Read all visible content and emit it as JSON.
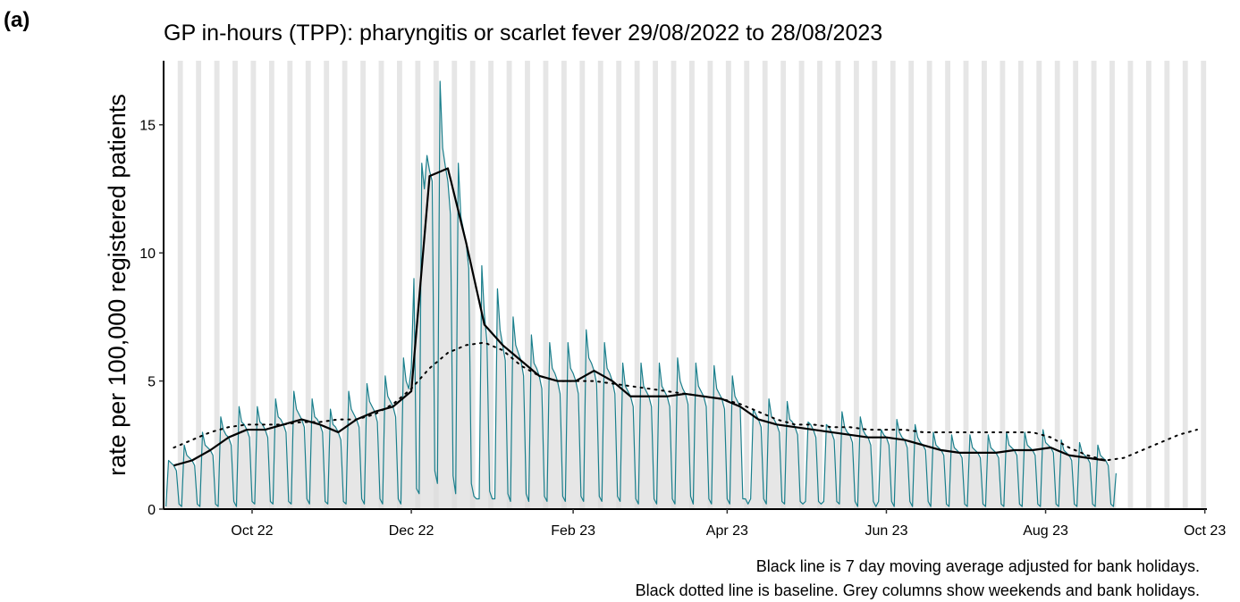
{
  "panel_label": "(a)",
  "chart_data": {
    "type": "line",
    "title": "GP in-hours (TPP): pharyngitis or scarlet fever 29/08/2022 to 28/08/2023",
    "y_label": "rate per 100,000 registered patients",
    "notes": [
      "Black line is 7 day moving average adjusted for bank holidays.",
      "Black dotted line is baseline. Grey columns show weekends and bank holidays."
    ],
    "xlim": [
      -0.9,
      398.8
    ],
    "xticks": [
      {
        "value": 33,
        "label": "Oct 22"
      },
      {
        "value": 94,
        "label": "Dec 22"
      },
      {
        "value": 156,
        "label": "Feb 23"
      },
      {
        "value": 215,
        "label": "Apr 23"
      },
      {
        "value": 276,
        "label": "Jun 23"
      },
      {
        "value": 337,
        "label": "Aug 23"
      },
      {
        "value": 398,
        "label": "Oct 23"
      }
    ],
    "ylim": [
      0,
      17.5
    ],
    "yticks": [
      0,
      5,
      10,
      15
    ],
    "weekend_columns": true,
    "series": [
      {
        "color": "#1a7f8c",
        "fill": "#dcdcdc",
        "width": 1.2,
        "dash": "solid",
        "x": [
          0,
          1,
          2,
          3,
          4,
          5,
          6,
          7,
          8,
          9,
          10,
          11,
          12,
          13,
          14,
          15,
          16,
          17,
          18,
          19,
          20,
          21,
          22,
          23,
          24,
          25,
          26,
          27,
          28,
          29,
          30,
          31,
          32,
          33,
          34,
          35,
          36,
          37,
          38,
          39,
          40,
          41,
          42,
          43,
          44,
          45,
          46,
          47,
          48,
          49,
          50,
          51,
          52,
          53,
          54,
          55,
          56,
          57,
          58,
          59,
          60,
          61,
          62,
          63,
          64,
          65,
          66,
          67,
          68,
          69,
          70,
          71,
          72,
          73,
          74,
          75,
          76,
          77,
          78,
          79,
          80,
          81,
          82,
          83,
          84,
          85,
          86,
          87,
          88,
          89,
          90,
          91,
          92,
          93,
          94,
          95,
          96,
          97,
          98,
          99,
          100,
          101,
          102,
          103,
          104,
          105,
          106,
          107,
          108,
          109,
          110,
          111,
          112,
          113,
          114,
          115,
          116,
          117,
          118,
          119,
          120,
          121,
          122,
          123,
          124,
          125,
          126,
          127,
          128,
          129,
          130,
          131,
          132,
          133,
          134,
          135,
          136,
          137,
          138,
          139,
          140,
          141,
          142,
          143,
          144,
          145,
          146,
          147,
          148,
          149,
          150,
          151,
          152,
          153,
          154,
          155,
          156,
          157,
          158,
          159,
          160,
          161,
          162,
          163,
          164,
          165,
          166,
          167,
          168,
          169,
          170,
          171,
          172,
          173,
          174,
          175,
          176,
          177,
          178,
          179,
          180,
          181,
          182,
          183,
          184,
          185,
          186,
          187,
          188,
          189,
          190,
          191,
          192,
          193,
          194,
          195,
          196,
          197,
          198,
          199,
          200,
          201,
          202,
          203,
          204,
          205,
          206,
          207,
          208,
          209,
          210,
          211,
          212,
          213,
          214,
          215,
          216,
          217,
          218,
          219,
          220,
          221,
          222,
          223,
          224,
          225,
          226,
          227,
          228,
          229,
          230,
          231,
          232,
          233,
          234,
          235,
          236,
          237,
          238,
          239,
          240,
          241,
          242,
          243,
          244,
          245,
          246,
          247,
          248,
          249,
          250,
          251,
          252,
          253,
          254,
          255,
          256,
          257,
          258,
          259,
          260,
          261,
          262,
          263,
          264,
          265,
          266,
          267,
          268,
          269,
          270,
          271,
          272,
          273,
          274,
          275,
          276,
          277,
          278,
          279,
          280,
          281,
          282,
          283,
          284,
          285,
          286,
          287,
          288,
          289,
          290,
          291,
          292,
          293,
          294,
          295,
          296,
          297,
          298,
          299,
          300,
          301,
          302,
          303,
          304,
          305,
          306,
          307,
          308,
          309,
          310,
          311,
          312,
          313,
          314,
          315,
          316,
          317,
          318,
          319,
          320,
          321,
          322,
          323,
          324,
          325,
          326,
          327,
          328,
          329,
          330,
          331,
          332,
          333,
          334,
          335,
          336,
          337,
          338,
          339,
          340,
          341,
          342,
          343,
          344,
          345,
          346,
          347,
          348,
          349,
          350,
          351,
          352,
          353,
          354,
          355,
          356,
          357,
          358,
          359,
          360,
          361,
          362,
          363,
          364
        ],
        "values": [
          0.1,
          1.9,
          1.8,
          1.7,
          1.5,
          0.2,
          0.1,
          2.5,
          2.1,
          2.0,
          1.9,
          1.7,
          0.2,
          0.1,
          3.0,
          2.5,
          2.4,
          2.3,
          2.1,
          0.2,
          0.1,
          3.6,
          3.1,
          2.9,
          2.8,
          2.5,
          0.3,
          0.1,
          4.0,
          3.4,
          3.3,
          3.1,
          2.8,
          0.3,
          0.2,
          4.0,
          3.4,
          3.3,
          3.1,
          2.8,
          0.3,
          0.2,
          4.3,
          3.6,
          3.5,
          3.3,
          3.0,
          0.3,
          0.2,
          4.6,
          3.9,
          3.7,
          3.5,
          3.2,
          0.4,
          0.2,
          4.3,
          3.6,
          3.5,
          3.3,
          3.0,
          0.3,
          0.2,
          3.9,
          3.3,
          3.2,
          3.0,
          2.7,
          0.3,
          0.2,
          4.6,
          3.9,
          3.7,
          3.5,
          3.2,
          0.4,
          0.2,
          4.9,
          4.2,
          4.0,
          3.8,
          3.4,
          0.4,
          0.2,
          5.2,
          4.4,
          4.2,
          4.0,
          3.6,
          0.4,
          0.2,
          5.9,
          5.0,
          4.7,
          5.5,
          9.0,
          0.8,
          0.6,
          13.5,
          12.5,
          13.8,
          13.2,
          12.8,
          1.5,
          1.0,
          16.7,
          14.1,
          13.4,
          12.8,
          11.5,
          1.3,
          0.6,
          13.5,
          11.4,
          10.9,
          10.4,
          9.4,
          1.0,
          0.5,
          0.4,
          0.4,
          9.5,
          7.6,
          6.5,
          0.7,
          0.4,
          0.4,
          8.6,
          7.0,
          6.4,
          5.8,
          0.6,
          0.3,
          7.5,
          6.4,
          6.1,
          5.8,
          5.2,
          0.6,
          0.3,
          6.8,
          5.7,
          5.5,
          5.2,
          4.7,
          0.5,
          0.3,
          6.5,
          5.5,
          5.3,
          5.0,
          4.5,
          0.5,
          0.3,
          6.5,
          5.5,
          5.3,
          5.0,
          4.5,
          0.5,
          0.3,
          7.0,
          5.9,
          5.7,
          5.4,
          4.9,
          0.5,
          0.3,
          6.5,
          5.5,
          5.3,
          5.0,
          4.5,
          0.5,
          0.3,
          5.7,
          4.8,
          4.6,
          4.4,
          4.0,
          0.4,
          0.2,
          5.7,
          4.8,
          4.6,
          4.4,
          4.0,
          0.4,
          0.2,
          5.7,
          4.8,
          4.6,
          4.4,
          4.0,
          0.4,
          0.2,
          5.9,
          5.0,
          4.7,
          4.5,
          4.1,
          0.5,
          0.2,
          5.7,
          4.8,
          4.6,
          4.4,
          4.0,
          0.4,
          0.2,
          5.6,
          4.7,
          4.5,
          4.3,
          3.9,
          0.4,
          0.2,
          5.2,
          4.4,
          4.2,
          4.0,
          0.4,
          0.4,
          0.2,
          0.4,
          3.9,
          3.7,
          3.5,
          3.2,
          0.4,
          0.2,
          4.3,
          3.6,
          3.5,
          3.3,
          3.0,
          0.3,
          0.2,
          4.2,
          3.5,
          3.4,
          3.2,
          2.9,
          0.3,
          0.2,
          0.3,
          3.4,
          3.3,
          3.1,
          2.8,
          0.3,
          0.2,
          0.3,
          3.3,
          3.2,
          3.0,
          2.7,
          0.3,
          0.2,
          3.8,
          3.2,
          3.0,
          2.9,
          2.6,
          0.3,
          0.1,
          3.6,
          3.1,
          2.9,
          2.8,
          2.5,
          0.3,
          0.1,
          0.3,
          3.1,
          2.9,
          2.8,
          2.5,
          0.3,
          0.1,
          3.5,
          3.0,
          2.8,
          2.7,
          2.4,
          0.3,
          0.1,
          3.3,
          2.8,
          2.6,
          2.5,
          2.3,
          0.3,
          0.1,
          3.0,
          2.5,
          2.4,
          2.3,
          2.1,
          0.2,
          0.1,
          2.9,
          2.4,
          2.3,
          2.2,
          2.0,
          0.2,
          0.1,
          2.9,
          2.4,
          2.3,
          2.2,
          2.0,
          0.2,
          0.1,
          2.9,
          2.4,
          2.3,
          2.2,
          2.0,
          0.2,
          0.1,
          3.0,
          2.5,
          2.4,
          2.3,
          2.1,
          0.2,
          0.1,
          3.0,
          2.5,
          2.4,
          2.3,
          2.1,
          0.2,
          0.1,
          3.1,
          2.6,
          2.5,
          2.4,
          2.2,
          0.2,
          0.1,
          2.7,
          2.3,
          2.2,
          2.1,
          1.9,
          0.2,
          0.1,
          2.6,
          2.2,
          2.1,
          2.0,
          1.8,
          0.2,
          0.1,
          2.5,
          2.1,
          2.0,
          1.9,
          1.7,
          0.2,
          0.1,
          1.4
        ]
      },
      {
        "color": "#000000",
        "width": 2.2,
        "dash": "solid",
        "x": [
          3,
          10,
          17,
          24,
          31,
          38,
          45,
          52,
          59,
          66,
          73,
          80,
          87,
          94,
          101,
          108,
          115,
          122,
          129,
          136,
          143,
          150,
          157,
          164,
          171,
          178,
          185,
          192,
          199,
          206,
          213,
          220,
          227,
          234,
          241,
          248,
          255,
          262,
          269,
          276,
          283,
          290,
          297,
          304,
          311,
          318,
          325,
          332,
          339,
          346,
          353,
          360
        ],
        "values": [
          1.7,
          1.9,
          2.3,
          2.8,
          3.1,
          3.1,
          3.3,
          3.5,
          3.3,
          3.0,
          3.5,
          3.8,
          4.0,
          4.6,
          13.0,
          13.3,
          10.4,
          7.2,
          6.4,
          5.8,
          5.2,
          5.0,
          5.0,
          5.4,
          5.0,
          4.4,
          4.4,
          4.4,
          4.5,
          4.4,
          4.3,
          4.0,
          3.5,
          3.3,
          3.2,
          3.1,
          3.0,
          2.9,
          2.8,
          2.8,
          2.7,
          2.5,
          2.3,
          2.2,
          2.2,
          2.2,
          2.3,
          2.3,
          2.4,
          2.1,
          2.0,
          1.9
        ]
      },
      {
        "color": "#000000",
        "width": 2,
        "dash": "dotted",
        "x": [
          3,
          10,
          17,
          24,
          31,
          38,
          45,
          52,
          59,
          66,
          73,
          80,
          87,
          94,
          101,
          108,
          115,
          122,
          129,
          136,
          143,
          150,
          157,
          164,
          171,
          178,
          185,
          192,
          199,
          206,
          213,
          220,
          227,
          234,
          241,
          248,
          255,
          262,
          269,
          276,
          283,
          290,
          297,
          304,
          311,
          318,
          325,
          332,
          339,
          346,
          353,
          360,
          367,
          374,
          381,
          388,
          395
        ],
        "values": [
          2.4,
          2.7,
          3.0,
          3.2,
          3.3,
          3.3,
          3.3,
          3.4,
          3.4,
          3.5,
          3.5,
          3.7,
          4.1,
          4.7,
          5.5,
          6.1,
          6.4,
          6.5,
          6.2,
          5.6,
          5.2,
          5.0,
          5.0,
          5.0,
          4.9,
          4.8,
          4.7,
          4.6,
          4.5,
          4.4,
          4.3,
          4.1,
          3.8,
          3.5,
          3.3,
          3.3,
          3.2,
          3.2,
          3.1,
          3.1,
          3.1,
          3.0,
          3.0,
          3.0,
          3.0,
          3.0,
          3.0,
          3.0,
          2.8,
          2.4,
          2.1,
          1.9,
          2.0,
          2.3,
          2.6,
          2.9,
          3.1
        ]
      }
    ]
  }
}
